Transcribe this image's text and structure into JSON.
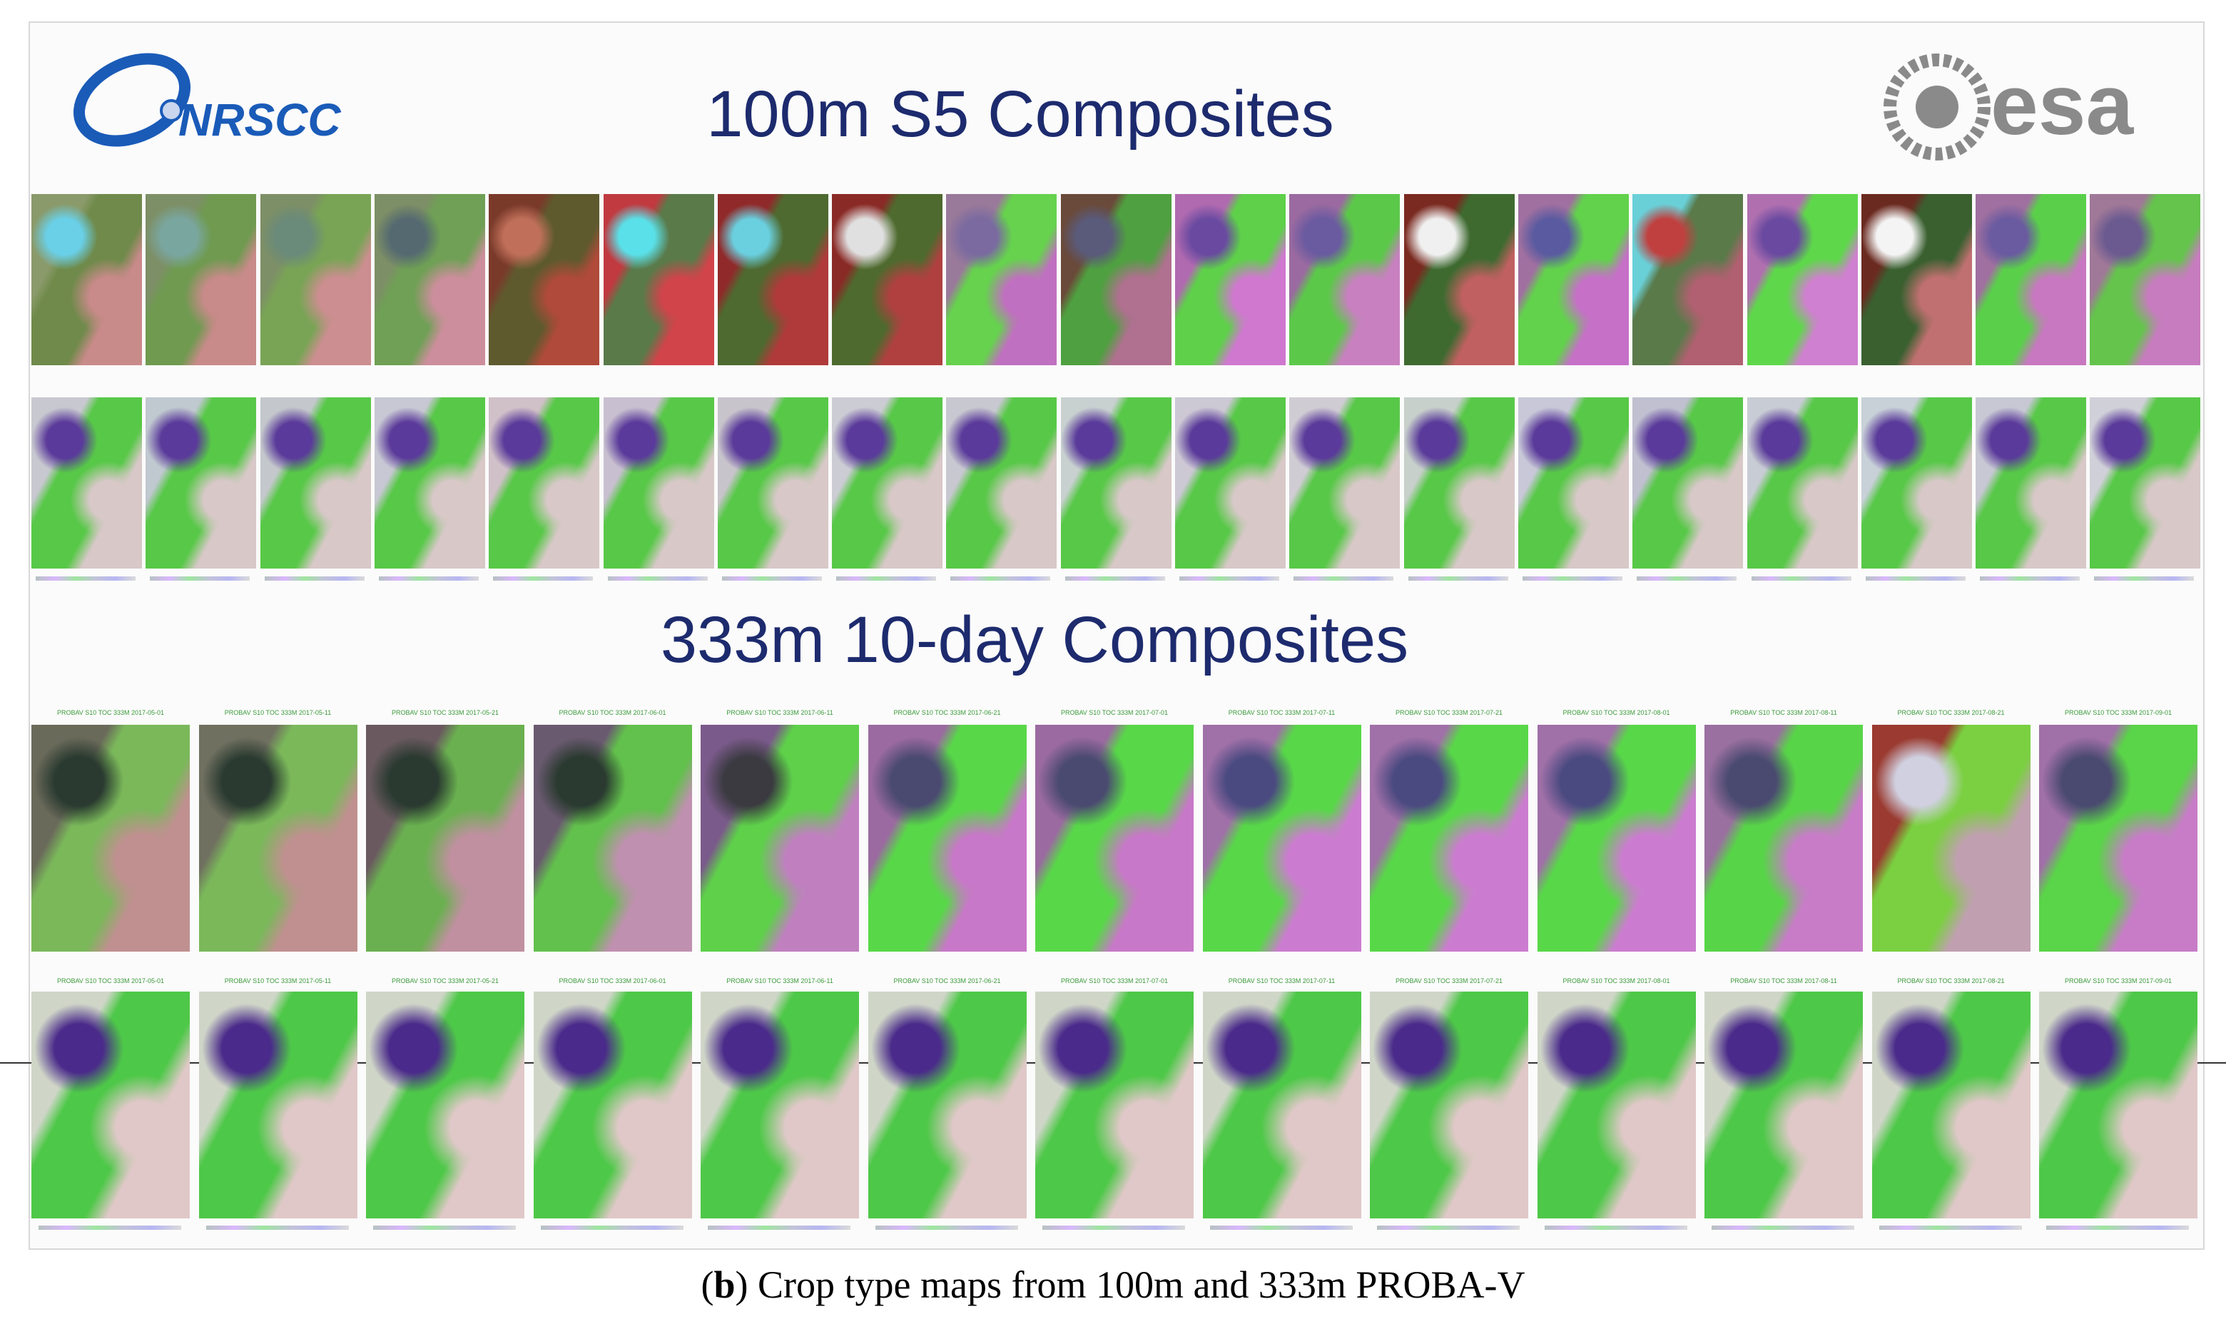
{
  "header": {
    "logo_left": "NRSCC",
    "logo_right": "esa"
  },
  "sections": [
    {
      "title": "100m S5 Composites"
    },
    {
      "title": "333m 10-day Composites",
      "tile_labels": [
        "PROBAV S10 TOC 333M 2017-05-01",
        "PROBAV S10 TOC 333M 2017-05-11",
        "PROBAV S10 TOC 333M 2017-05-21",
        "PROBAV S10 TOC 333M 2017-06-01",
        "PROBAV S10 TOC 333M 2017-06-11",
        "PROBAV S10 TOC 333M 2017-06-21",
        "PROBAV S10 TOC 333M 2017-07-01",
        "PROBAV S10 TOC 333M 2017-07-11",
        "PROBAV S10 TOC 333M 2017-07-21",
        "PROBAV S10 TOC 333M 2017-08-01",
        "PROBAV S10 TOC 333M 2017-08-11",
        "PROBAV S10 TOC 333M 2017-08-21",
        "PROBAV S10 TOC 333M 2017-09-01"
      ]
    }
  ],
  "caption": {
    "open": "(",
    "label": "b",
    "text": ") Crop type maps from 100m and 333m PROBA-V"
  }
}
